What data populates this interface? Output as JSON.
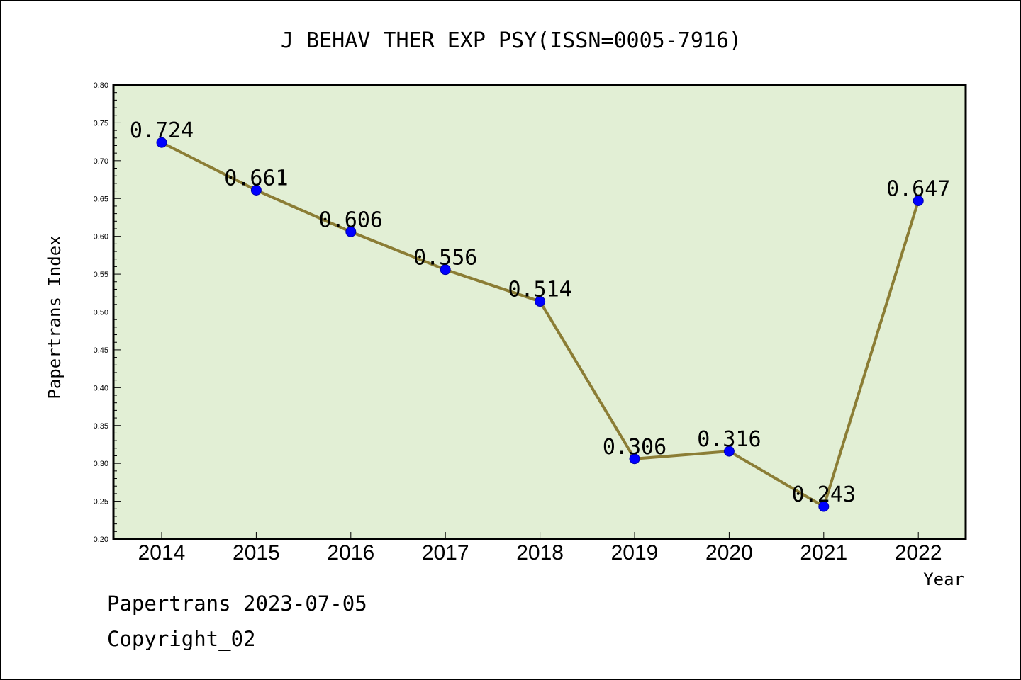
{
  "chart_data": {
    "type": "line",
    "title": "J BEHAV THER EXP PSY(ISSN=0005-7916)",
    "xlabel": "Year",
    "ylabel": "Papertrans Index",
    "categories": [
      "2014",
      "2015",
      "2016",
      "2017",
      "2018",
      "2019",
      "2020",
      "2021",
      "2022"
    ],
    "values": [
      0.724,
      0.661,
      0.606,
      0.556,
      0.514,
      0.306,
      0.316,
      0.243,
      0.647
    ],
    "data_labels": [
      "0.724",
      "0.661",
      "0.606",
      "0.556",
      "0.514",
      "0.306",
      "0.316",
      "0.243",
      "0.647"
    ],
    "ylim": [
      0.2,
      0.8
    ],
    "yticks": [
      "0.20",
      "0.25",
      "0.30",
      "0.35",
      "0.40",
      "0.45",
      "0.50",
      "0.55",
      "0.60",
      "0.65",
      "0.70",
      "0.75",
      "0.80"
    ],
    "grid": false,
    "colors": {
      "plot_background": "#e2efd5",
      "line": "#8b7d35",
      "marker": "#0000ff"
    }
  },
  "footer": {
    "line1": "Papertrans 2023-07-05",
    "line2": "Copyright_02"
  }
}
